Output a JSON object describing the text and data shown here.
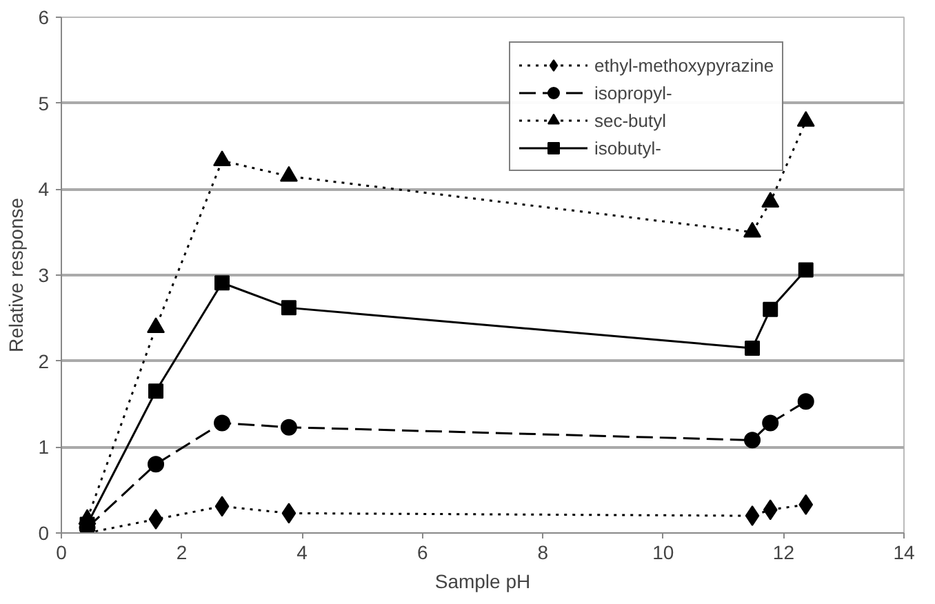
{
  "chart_data": {
    "type": "line",
    "xlabel": "Sample pH",
    "ylabel": "Relative response",
    "xlim": [
      0,
      14
    ],
    "xticks": [
      0,
      2,
      4,
      6,
      8,
      10,
      12,
      14
    ],
    "ylim": [
      0,
      6
    ],
    "yticks": [
      0,
      1,
      2,
      3,
      4,
      5,
      6
    ],
    "grid": "y",
    "legend": "top right",
    "x": [
      0.43,
      1.57,
      2.67,
      3.78,
      11.48,
      11.78,
      12.37
    ],
    "series": [
      {
        "name": "ethyl-methoxypyrazine",
        "color": "#000000",
        "marker": "diamond",
        "line_style": "dotted",
        "values": [
          0.0,
          0.16,
          0.31,
          0.23,
          0.2,
          0.27,
          0.33
        ]
      },
      {
        "name": "isopropyl-",
        "color": "#000000",
        "marker": "circle",
        "line_style": "dashed",
        "values": [
          0.06,
          0.8,
          1.28,
          1.23,
          1.08,
          1.28,
          1.53
        ]
      },
      {
        "name": "sec-butyl",
        "color": "#000000",
        "marker": "triangle",
        "line_style": "dotted",
        "values": [
          0.16,
          2.39,
          4.33,
          4.15,
          3.5,
          3.85,
          4.79
        ]
      },
      {
        "name": "isobutyl-",
        "color": "#000000",
        "marker": "square",
        "line_style": "solid",
        "values": [
          0.1,
          1.65,
          2.91,
          2.62,
          2.15,
          2.6,
          3.06
        ]
      }
    ]
  }
}
